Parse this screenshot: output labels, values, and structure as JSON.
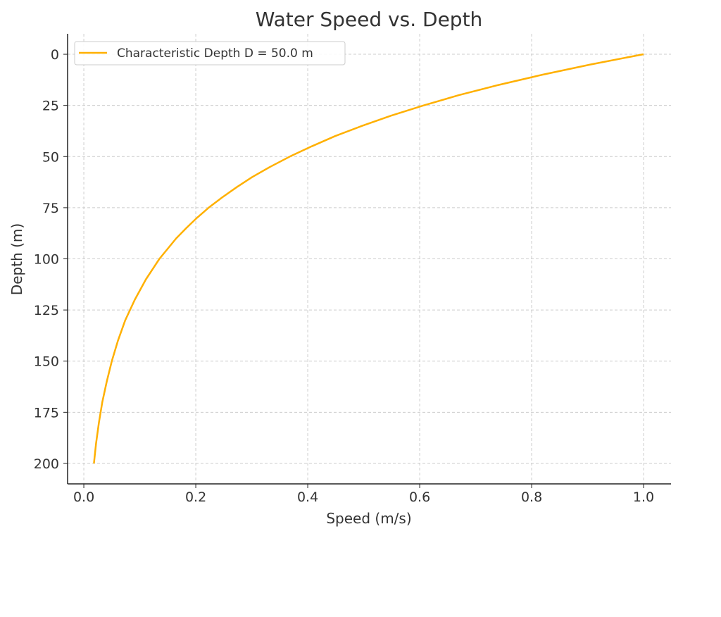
{
  "chart_data": {
    "type": "line",
    "title": "Water Speed vs. Depth",
    "xlabel": "Speed (m/s)",
    "ylabel": "Depth (m)",
    "xlim": [
      -0.029,
      1.049
    ],
    "ylim": [
      210,
      -10
    ],
    "y_inverted": true,
    "grid": true,
    "legend_placement": "top-left",
    "xticks": [
      0.0,
      0.2,
      0.4,
      0.6,
      0.8,
      1.0
    ],
    "xtick_labels": [
      "0.0",
      "0.2",
      "0.4",
      "0.6",
      "0.8",
      "1.0"
    ],
    "yticks": [
      0,
      25,
      50,
      75,
      100,
      125,
      150,
      175,
      200
    ],
    "ytick_labels": [
      "0",
      "25",
      "50",
      "75",
      "100",
      "125",
      "150",
      "175",
      "200"
    ],
    "series": [
      {
        "name": "Characteristic Depth D = 50.0 m",
        "color": "#FFB000",
        "depth": [
          0,
          5,
          10,
          15,
          20,
          25,
          30,
          35,
          40,
          45,
          50,
          55,
          60,
          65,
          70,
          75,
          80,
          85,
          90,
          95,
          100,
          110,
          120,
          130,
          140,
          150,
          160,
          170,
          180,
          190,
          200
        ],
        "speed": [
          1.0,
          0.905,
          0.819,
          0.741,
          0.67,
          0.607,
          0.549,
          0.497,
          0.449,
          0.407,
          0.368,
          0.333,
          0.301,
          0.273,
          0.247,
          0.223,
          0.202,
          0.183,
          0.165,
          0.15,
          0.135,
          0.111,
          0.091,
          0.074,
          0.061,
          0.05,
          0.041,
          0.033,
          0.027,
          0.022,
          0.018
        ]
      }
    ]
  }
}
